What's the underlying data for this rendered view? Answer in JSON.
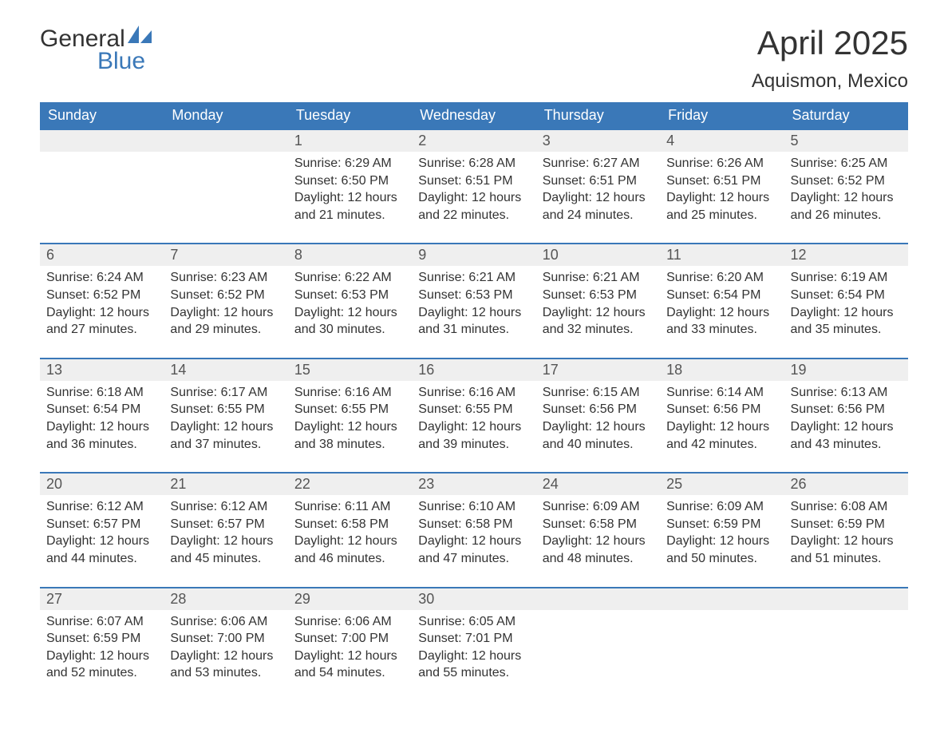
{
  "logo": {
    "text_top": "General",
    "text_bottom": "Blue",
    "accent_color": "#3a78b8"
  },
  "title": "April 2025",
  "location": "Aquismon, Mexico",
  "colors": {
    "header_bg": "#3a78b8",
    "header_text": "#ffffff",
    "daynum_bg": "#efefef",
    "body_text": "#333333",
    "border": "#3a78b8"
  },
  "typography": {
    "title_fontsize": 42,
    "location_fontsize": 24,
    "weekday_fontsize": 18,
    "daynum_fontsize": 18,
    "cell_fontsize": 16
  },
  "weekdays": [
    "Sunday",
    "Monday",
    "Tuesday",
    "Wednesday",
    "Thursday",
    "Friday",
    "Saturday"
  ],
  "labels": {
    "sunrise": "Sunrise:",
    "sunset": "Sunset:",
    "daylight": "Daylight:"
  },
  "grid_start_weekday": 0,
  "first_day_weekday": 2,
  "days": [
    {
      "n": 1,
      "sunrise": "6:29 AM",
      "sunset": "6:50 PM",
      "daylight": "12 hours and 21 minutes."
    },
    {
      "n": 2,
      "sunrise": "6:28 AM",
      "sunset": "6:51 PM",
      "daylight": "12 hours and 22 minutes."
    },
    {
      "n": 3,
      "sunrise": "6:27 AM",
      "sunset": "6:51 PM",
      "daylight": "12 hours and 24 minutes."
    },
    {
      "n": 4,
      "sunrise": "6:26 AM",
      "sunset": "6:51 PM",
      "daylight": "12 hours and 25 minutes."
    },
    {
      "n": 5,
      "sunrise": "6:25 AM",
      "sunset": "6:52 PM",
      "daylight": "12 hours and 26 minutes."
    },
    {
      "n": 6,
      "sunrise": "6:24 AM",
      "sunset": "6:52 PM",
      "daylight": "12 hours and 27 minutes."
    },
    {
      "n": 7,
      "sunrise": "6:23 AM",
      "sunset": "6:52 PM",
      "daylight": "12 hours and 29 minutes."
    },
    {
      "n": 8,
      "sunrise": "6:22 AM",
      "sunset": "6:53 PM",
      "daylight": "12 hours and 30 minutes."
    },
    {
      "n": 9,
      "sunrise": "6:21 AM",
      "sunset": "6:53 PM",
      "daylight": "12 hours and 31 minutes."
    },
    {
      "n": 10,
      "sunrise": "6:21 AM",
      "sunset": "6:53 PM",
      "daylight": "12 hours and 32 minutes."
    },
    {
      "n": 11,
      "sunrise": "6:20 AM",
      "sunset": "6:54 PM",
      "daylight": "12 hours and 33 minutes."
    },
    {
      "n": 12,
      "sunrise": "6:19 AM",
      "sunset": "6:54 PM",
      "daylight": "12 hours and 35 minutes."
    },
    {
      "n": 13,
      "sunrise": "6:18 AM",
      "sunset": "6:54 PM",
      "daylight": "12 hours and 36 minutes."
    },
    {
      "n": 14,
      "sunrise": "6:17 AM",
      "sunset": "6:55 PM",
      "daylight": "12 hours and 37 minutes."
    },
    {
      "n": 15,
      "sunrise": "6:16 AM",
      "sunset": "6:55 PM",
      "daylight": "12 hours and 38 minutes."
    },
    {
      "n": 16,
      "sunrise": "6:16 AM",
      "sunset": "6:55 PM",
      "daylight": "12 hours and 39 minutes."
    },
    {
      "n": 17,
      "sunrise": "6:15 AM",
      "sunset": "6:56 PM",
      "daylight": "12 hours and 40 minutes."
    },
    {
      "n": 18,
      "sunrise": "6:14 AM",
      "sunset": "6:56 PM",
      "daylight": "12 hours and 42 minutes."
    },
    {
      "n": 19,
      "sunrise": "6:13 AM",
      "sunset": "6:56 PM",
      "daylight": "12 hours and 43 minutes."
    },
    {
      "n": 20,
      "sunrise": "6:12 AM",
      "sunset": "6:57 PM",
      "daylight": "12 hours and 44 minutes."
    },
    {
      "n": 21,
      "sunrise": "6:12 AM",
      "sunset": "6:57 PM",
      "daylight": "12 hours and 45 minutes."
    },
    {
      "n": 22,
      "sunrise": "6:11 AM",
      "sunset": "6:58 PM",
      "daylight": "12 hours and 46 minutes."
    },
    {
      "n": 23,
      "sunrise": "6:10 AM",
      "sunset": "6:58 PM",
      "daylight": "12 hours and 47 minutes."
    },
    {
      "n": 24,
      "sunrise": "6:09 AM",
      "sunset": "6:58 PM",
      "daylight": "12 hours and 48 minutes."
    },
    {
      "n": 25,
      "sunrise": "6:09 AM",
      "sunset": "6:59 PM",
      "daylight": "12 hours and 50 minutes."
    },
    {
      "n": 26,
      "sunrise": "6:08 AM",
      "sunset": "6:59 PM",
      "daylight": "12 hours and 51 minutes."
    },
    {
      "n": 27,
      "sunrise": "6:07 AM",
      "sunset": "6:59 PM",
      "daylight": "12 hours and 52 minutes."
    },
    {
      "n": 28,
      "sunrise": "6:06 AM",
      "sunset": "7:00 PM",
      "daylight": "12 hours and 53 minutes."
    },
    {
      "n": 29,
      "sunrise": "6:06 AM",
      "sunset": "7:00 PM",
      "daylight": "12 hours and 54 minutes."
    },
    {
      "n": 30,
      "sunrise": "6:05 AM",
      "sunset": "7:01 PM",
      "daylight": "12 hours and 55 minutes."
    }
  ]
}
